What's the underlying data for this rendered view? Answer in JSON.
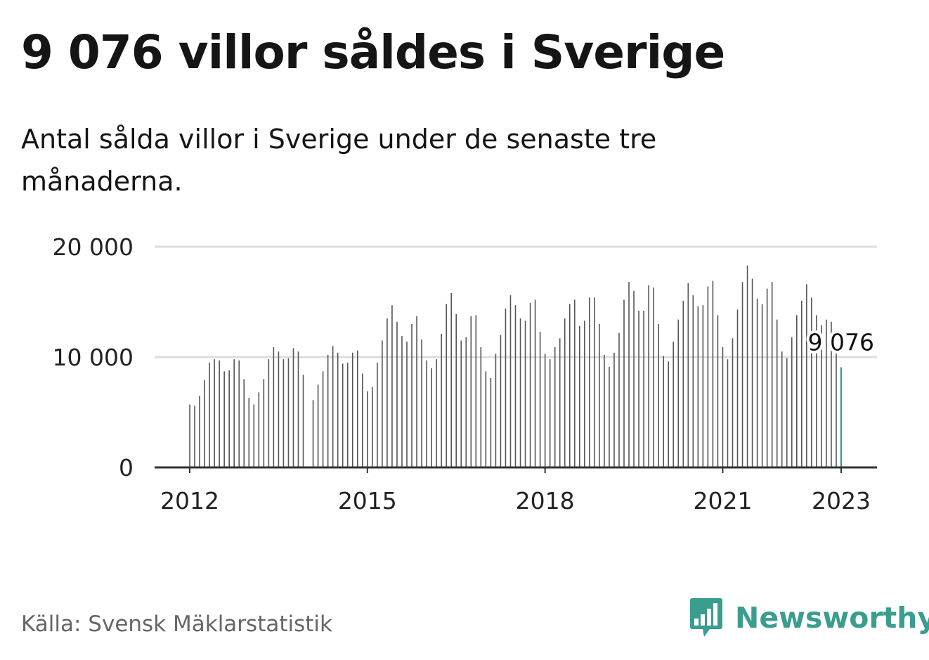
{
  "title": "9 076 villor såldes i Sverige",
  "subtitle": "Antal sålda villor i Sverige under de senaste tre månaderna.",
  "source": "Källa: Svensk Mäklarstatistik",
  "brand": {
    "name": "Newsworthy",
    "icon": "bar-chart-logo-icon",
    "color": "#3a9d8e"
  },
  "colors": {
    "bar": "#555555",
    "highlight": "#3a9d8e",
    "grid": "#dddddd",
    "axis": "#333333"
  },
  "chart_data": {
    "type": "bar",
    "title": "9 076 villor såldes i Sverige",
    "subtitle": "Antal sålda villor i Sverige under de senaste tre månaderna.",
    "x_start": "2012-01",
    "x_end": "2023-01",
    "x_ticks": [
      "2012",
      "2015",
      "2018",
      "2021",
      "2023"
    ],
    "y_ticks": [
      "0",
      "10 000",
      "20 000"
    ],
    "y_tick_values": [
      0,
      10000,
      20000
    ],
    "ylim": [
      0,
      20000
    ],
    "grid": true,
    "values": [
      5700,
      5600,
      6500,
      7900,
      9500,
      9800,
      9700,
      8700,
      8800,
      9800,
      9700,
      8000,
      6300,
      5700,
      6800,
      8000,
      9800,
      10900,
      10500,
      9800,
      9900,
      10800,
      10500,
      8400,
      null,
      6100,
      7500,
      8700,
      10200,
      11000,
      10400,
      9400,
      9500,
      10400,
      10600,
      8500,
      6900,
      7300,
      9500,
      11500,
      13500,
      14700,
      13200,
      11900,
      11400,
      13000,
      13700,
      11600,
      9700,
      9000,
      9800,
      12100,
      14800,
      15800,
      13900,
      11500,
      11800,
      13700,
      13800,
      10900,
      8700,
      8100,
      10300,
      12000,
      14400,
      15600,
      14700,
      13500,
      13300,
      14900,
      15200,
      12300,
      10300,
      9800,
      10900,
      11700,
      13500,
      14800,
      15200,
      12800,
      13300,
      15400,
      15400,
      13000,
      10200,
      9100,
      10400,
      12200,
      15200,
      16800,
      16000,
      14200,
      14200,
      16500,
      16300,
      13000,
      10100,
      9600,
      11400,
      13400,
      15100,
      16700,
      15600,
      14600,
      14700,
      16400,
      16900,
      13800,
      10900,
      9800,
      11700,
      14300,
      16800,
      18300,
      17100,
      15300,
      14800,
      16200,
      16800,
      13400,
      10500,
      9900,
      11800,
      13800,
      15100,
      16600,
      15400,
      13800,
      12900,
      13400,
      13200,
      11200,
      9076
    ],
    "highlight_index": 132,
    "highlight_label": "9 076"
  }
}
